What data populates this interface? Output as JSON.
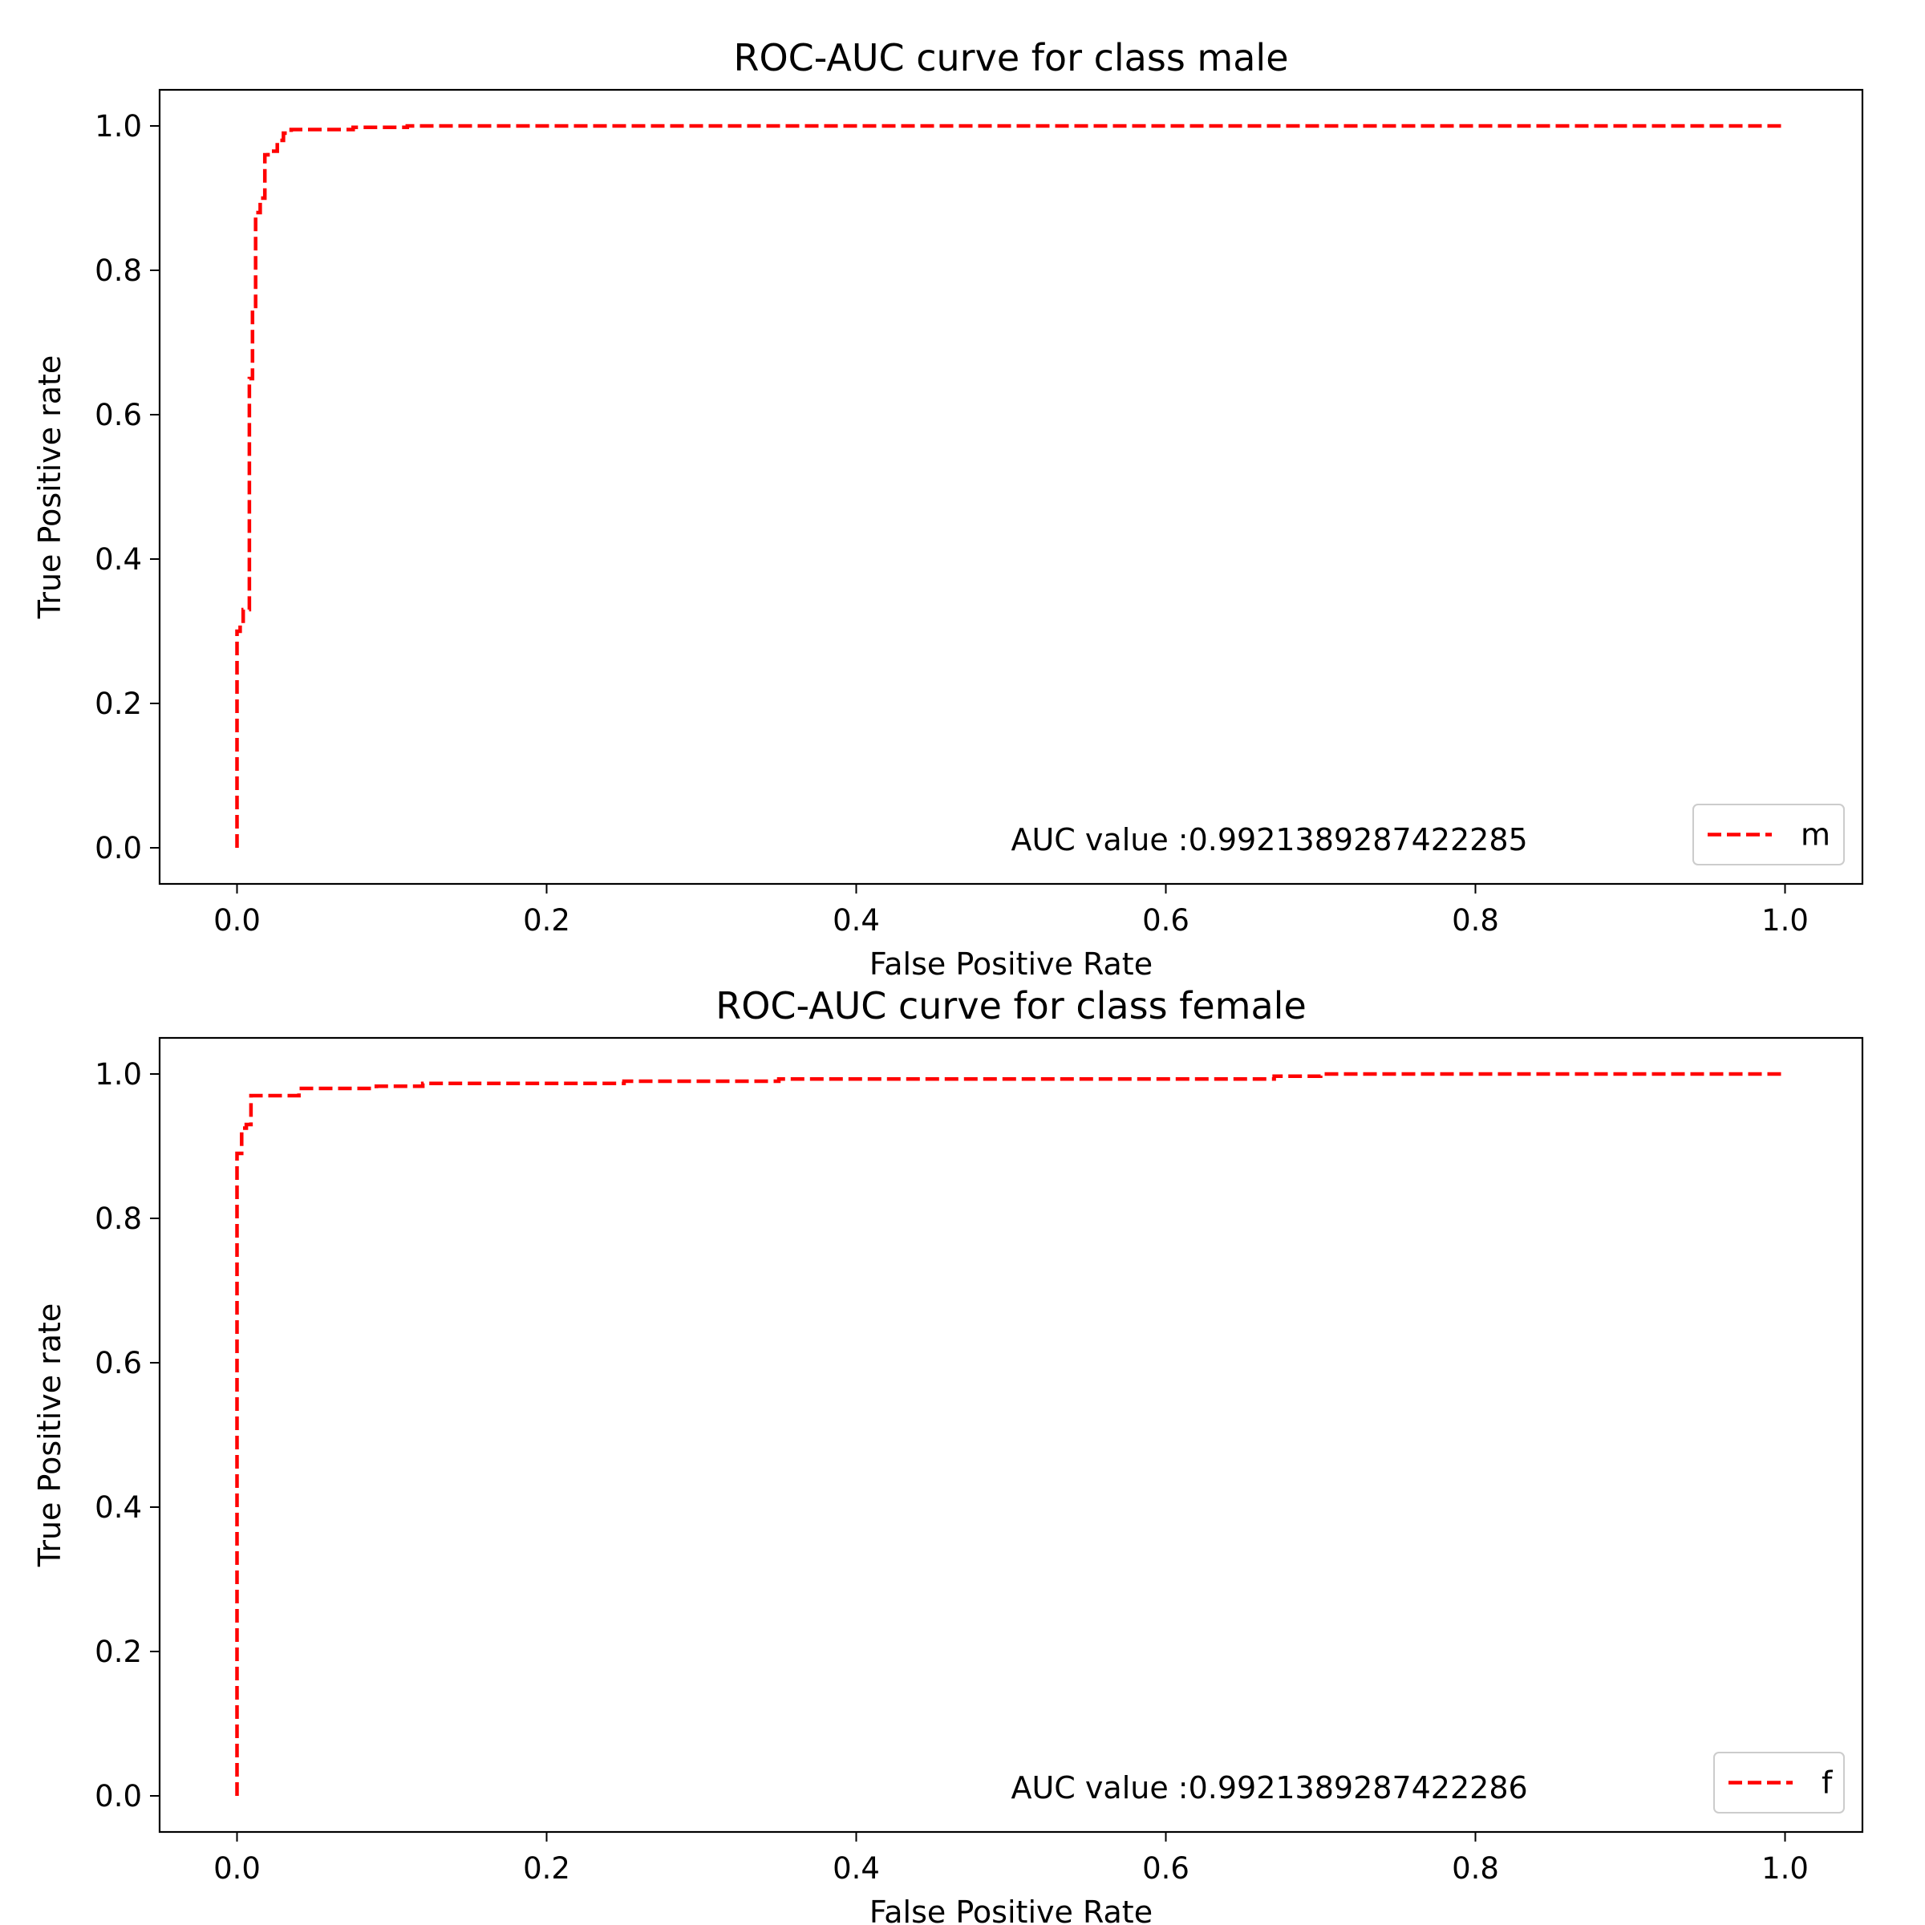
{
  "chart_data": [
    {
      "type": "line",
      "title": "ROC-AUC curve for class male",
      "xlabel": "False Positive Rate",
      "ylabel": "True Positive rate",
      "xlim": [
        -0.05,
        1.05
      ],
      "ylim": [
        -0.05,
        1.05
      ],
      "xticks": [
        "0.0",
        "0.2",
        "0.4",
        "0.6",
        "0.8",
        "1.0"
      ],
      "yticks": [
        "0.0",
        "0.2",
        "0.4",
        "0.6",
        "0.8",
        "1.0"
      ],
      "grid": false,
      "legend_position": "lower-right",
      "annotation": "AUC value :0.9921389287422285",
      "series": [
        {
          "name": "m",
          "color": "#ff0000",
          "style": "dashed",
          "x": [
            0.0,
            0.0,
            0.002,
            0.002,
            0.004,
            0.004,
            0.008,
            0.008,
            0.01,
            0.01,
            0.012,
            0.012,
            0.015,
            0.015,
            0.018,
            0.018,
            0.02,
            0.02,
            0.026,
            0.026,
            0.03,
            0.03,
            0.035,
            0.035,
            0.075,
            0.075,
            0.11,
            0.11,
            1.0
          ],
          "y": [
            0.0,
            0.3,
            0.3,
            0.31,
            0.31,
            0.33,
            0.33,
            0.65,
            0.65,
            0.75,
            0.75,
            0.88,
            0.88,
            0.9,
            0.9,
            0.96,
            0.96,
            0.965,
            0.965,
            0.98,
            0.98,
            0.99,
            0.99,
            0.995,
            0.995,
            0.998,
            0.998,
            1.0,
            1.0
          ]
        }
      ]
    },
    {
      "type": "line",
      "title": "ROC-AUC curve for class female",
      "xlabel": "False Positive Rate",
      "ylabel": "True Positive rate",
      "xlim": [
        -0.05,
        1.05
      ],
      "ylim": [
        -0.05,
        1.05
      ],
      "xticks": [
        "0.0",
        "0.2",
        "0.4",
        "0.6",
        "0.8",
        "1.0"
      ],
      "yticks": [
        "0.0",
        "0.2",
        "0.4",
        "0.6",
        "0.8",
        "1.0"
      ],
      "grid": false,
      "legend_position": "lower-right",
      "annotation": "AUC value :0.9921389287422286",
      "series": [
        {
          "name": "f",
          "color": "#ff0000",
          "style": "dashed",
          "x": [
            0.0,
            0.0,
            0.003,
            0.003,
            0.006,
            0.006,
            0.009,
            0.009,
            0.04,
            0.04,
            0.09,
            0.09,
            0.12,
            0.12,
            0.25,
            0.25,
            0.35,
            0.35,
            0.67,
            0.67,
            0.7,
            0.7,
            1.0
          ],
          "y": [
            0.0,
            0.89,
            0.89,
            0.925,
            0.925,
            0.93,
            0.93,
            0.97,
            0.97,
            0.98,
            0.98,
            0.983,
            0.983,
            0.987,
            0.987,
            0.99,
            0.99,
            0.993,
            0.993,
            0.997,
            0.997,
            1.0,
            1.0
          ]
        }
      ]
    }
  ]
}
